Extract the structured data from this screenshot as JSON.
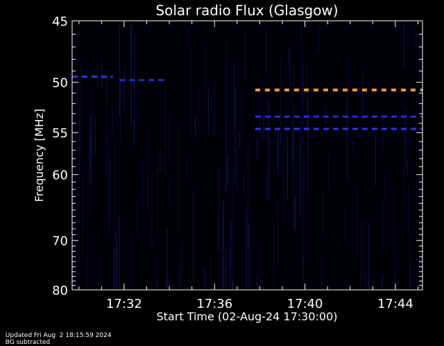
{
  "chart_data": {
    "type": "heatmap",
    "title": "Solar radio Flux (Glasgow)",
    "xlabel": "Start Time (02-Aug-24 17:30:00)",
    "ylabel": "Frequency [MHz]",
    "x_range_minutes": [
      -0.3,
      15.2
    ],
    "xticks": [
      {
        "minutes": 2,
        "label": "17:32"
      },
      {
        "minutes": 6,
        "label": "17:36"
      },
      {
        "minutes": 10,
        "label": "17:40"
      },
      {
        "minutes": 14,
        "label": "17:44"
      }
    ],
    "ylim_mhz": [
      45,
      80
    ],
    "yticks": [
      {
        "value": 45,
        "label": "45"
      },
      {
        "value": 50,
        "label": "50"
      },
      {
        "value": 55,
        "label": "55"
      },
      {
        "value": 60,
        "label": "60"
      },
      {
        "value": 70,
        "label": "70"
      },
      {
        "value": 80,
        "label": "80"
      }
    ],
    "background_color": "#000008",
    "emission_bands": [
      {
        "freq_mhz": 49.5,
        "start_min": -0.3,
        "end_min": 1.5,
        "color": "#2a3cff",
        "style": "dashed"
      },
      {
        "freq_mhz": 49.8,
        "start_min": 1.8,
        "end_min": 3.8,
        "color": "#1e2bd0",
        "style": "dashed"
      },
      {
        "freq_mhz": 50.7,
        "start_min": 7.8,
        "end_min": 15.2,
        "color": "#ff9a2a",
        "style": "dashed"
      },
      {
        "freq_mhz": 53.3,
        "start_min": 7.8,
        "end_min": 15.2,
        "color": "#2a2aff",
        "style": "dashed"
      },
      {
        "freq_mhz": 54.6,
        "start_min": 7.8,
        "end_min": 15.2,
        "color": "#3030ff",
        "style": "dashed"
      }
    ]
  },
  "footer": {
    "updated": "Updated Fri Aug  2 18:15:59 2024",
    "mode": "BG subtracted"
  }
}
